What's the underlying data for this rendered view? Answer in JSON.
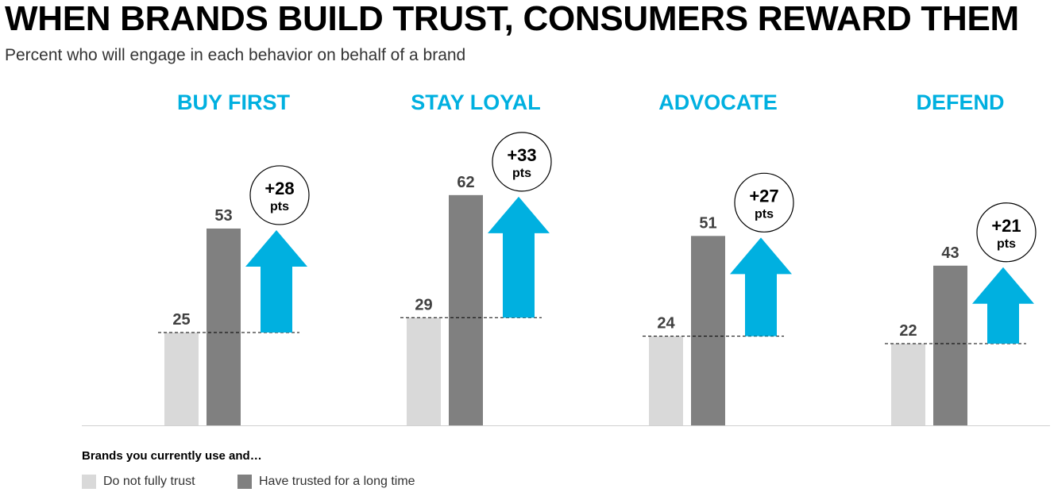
{
  "header": {
    "title": "WHEN BRANDS BUILD TRUST, CONSUMERS REWARD THEM",
    "subtitle": "Percent who will engage in each behavior on behalf of a brand"
  },
  "legend": {
    "title": "Brands you currently use and…",
    "items": [
      {
        "label": "Do not fully trust",
        "color": "#d9d9d9"
      },
      {
        "label": "Have trusted for a long time",
        "color": "#808080"
      }
    ]
  },
  "colors": {
    "accent": "#00b0e0",
    "low": "#d9d9d9",
    "high": "#808080",
    "text": "#404040"
  },
  "chart_data": {
    "type": "bar",
    "categories": [
      "BUY FIRST",
      "STAY LOYAL",
      "ADVOCATE",
      "DEFEND"
    ],
    "series": [
      {
        "name": "Do not fully trust",
        "values": [
          25,
          29,
          24,
          22
        ]
      },
      {
        "name": "Have trusted for a long time",
        "values": [
          53,
          62,
          51,
          43
        ]
      }
    ],
    "differences": [
      "+28",
      "+33",
      "+27",
      "+21"
    ],
    "difference_unit": "pts",
    "ylim": [
      0,
      70
    ],
    "grid": false,
    "legend_position": "bottom-left"
  }
}
